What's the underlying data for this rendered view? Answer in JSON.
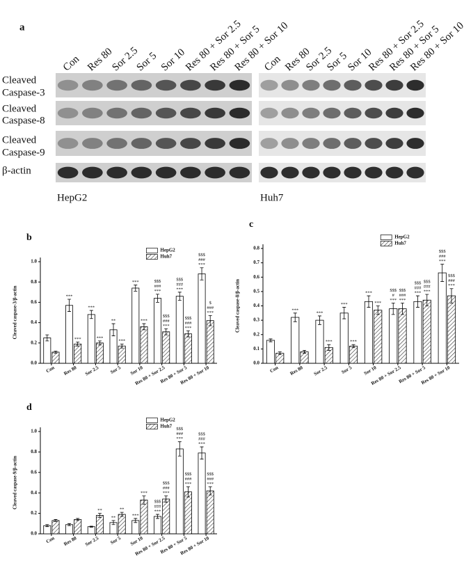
{
  "blot": {
    "label": "a",
    "panels": [
      {
        "cell_line": "HepG2",
        "lanes": [
          "Con",
          "Res 80",
          "Sor 2.5",
          "Sor 5",
          "Sor 10",
          "Res 80 + Sor 2.5",
          "Res 80 + Sor 5",
          "Res 80 + Sor 10"
        ]
      },
      {
        "cell_line": "Huh7",
        "lanes": [
          "Con",
          "Res 80",
          "Sor 2.5",
          "Sor 5",
          "Sor 10",
          "Res 80 + Sor 2.5",
          "Res 80 + Sor 5",
          "Res 80 + Sor 10"
        ]
      }
    ],
    "rows": [
      [
        "Cleaved",
        "Caspase-3"
      ],
      [
        "Cleaved",
        "Caspase-8"
      ],
      [
        "Cleaved",
        "Caspase-9"
      ],
      [
        "β-actin"
      ]
    ]
  },
  "chart_data": [
    {
      "type": "bar",
      "title": "b",
      "ylabel": "Cleaved caspase-3/β-actin",
      "categories": [
        "Con",
        "Res 80",
        "Sor 2.5",
        "Sor 5",
        "Sor 10",
        "Res 80 + Sor 2.5",
        "Res 80 + Sor 5",
        "Res 80 + Sor 10"
      ],
      "ylim": [
        0,
        1.0
      ],
      "yticks": [
        {
          "value": 0,
          "label": "0.0"
        },
        0.2,
        0.4,
        0.6,
        0.8,
        {
          "value": 1,
          "label": "1.0"
        }
      ],
      "legend": "top-right",
      "series": [
        {
          "name": "HepG2",
          "color": "#ffffff",
          "values": [
            0.25,
            0.57,
            0.48,
            0.33,
            0.74,
            0.64,
            0.66,
            0.88
          ],
          "errors": [
            0.03,
            0.06,
            0.04,
            0.06,
            0.03,
            0.04,
            0.04,
            0.06
          ],
          "annotations": [
            [],
            [
              "***"
            ],
            [
              "***"
            ],
            [
              "**"
            ],
            [
              "***"
            ],
            [
              "$$$",
              "###",
              "***"
            ],
            [
              "$$$",
              "###",
              "***"
            ],
            [
              "$$$",
              "###",
              "***"
            ]
          ]
        },
        {
          "name": "Huh7",
          "color": "#ffffff",
          "pattern": "hatch",
          "values": [
            0.11,
            0.19,
            0.2,
            0.17,
            0.36,
            0.31,
            0.29,
            0.42
          ],
          "errors": [
            0.01,
            0.02,
            0.02,
            0.02,
            0.03,
            0.03,
            0.03,
            0.05
          ],
          "annotations": [
            [],
            [
              "***"
            ],
            [
              "***"
            ],
            [
              "***"
            ],
            [
              "***"
            ],
            [
              "$$$",
              "###",
              "***"
            ],
            [
              "$$$",
              "###",
              "***"
            ],
            [
              "$",
              "###",
              "***"
            ]
          ]
        }
      ]
    },
    {
      "type": "bar",
      "title": "c",
      "ylabel": "Cleaved caspase-8/β-actin",
      "categories": [
        "Con",
        "Res 80",
        "Sor 2.5",
        "Sor 5",
        "Sor 10",
        "Res 80 + Sor 2.5",
        "Res 80 + Sor 5",
        "Res 80 + Sor 10"
      ],
      "ylim": [
        0,
        0.8
      ],
      "yticks": [
        {
          "value": 0,
          "label": "0.0"
        },
        0.1,
        0.2,
        0.3,
        0.4,
        0.5,
        0.6,
        0.7,
        0.8
      ],
      "legend": "top-right",
      "series": [
        {
          "name": "HepG2",
          "color": "#ffffff",
          "values": [
            0.16,
            0.32,
            0.3,
            0.35,
            0.43,
            0.38,
            0.43,
            0.63
          ],
          "errors": [
            0.01,
            0.03,
            0.03,
            0.04,
            0.04,
            0.04,
            0.04,
            0.06
          ],
          "annotations": [
            [],
            [
              "***"
            ],
            [
              "***"
            ],
            [
              "***"
            ],
            [
              "***"
            ],
            [
              "$$$",
              "#",
              "***"
            ],
            [
              "$$$",
              "###",
              "***"
            ],
            [
              "$$$",
              "###",
              "***"
            ]
          ]
        },
        {
          "name": "Huh7",
          "color": "#ffffff",
          "pattern": "hatch",
          "values": [
            0.07,
            0.08,
            0.11,
            0.12,
            0.37,
            0.38,
            0.44,
            0.47
          ],
          "errors": [
            0.01,
            0.01,
            0.02,
            0.01,
            0.03,
            0.04,
            0.04,
            0.05
          ],
          "annotations": [
            [],
            [],
            [
              "***"
            ],
            [
              "***"
            ],
            [
              "***"
            ],
            [
              "$$$",
              "###",
              "***"
            ],
            [
              "$$$",
              "###",
              "***"
            ],
            [
              "$$$",
              "###",
              "***"
            ]
          ]
        }
      ]
    },
    {
      "type": "bar",
      "title": "d",
      "ylabel": "Cleaved caspase-9/β-actin",
      "categories": [
        "Con",
        "Res 80",
        "Sor 2.5",
        "Sor 5",
        "Sor 10",
        "Res 80 + Sor 2.5",
        "Res 80 + Sor 5",
        "Res 80 + Sor 10"
      ],
      "ylim": [
        0,
        1.0
      ],
      "yticks": [
        {
          "value": 0,
          "label": "0.0"
        },
        0.2,
        0.4,
        0.6,
        0.8,
        {
          "value": 1,
          "label": "1.0"
        }
      ],
      "legend": "top-right",
      "series": [
        {
          "name": "HepG2",
          "color": "#ffffff",
          "values": [
            0.08,
            0.09,
            0.07,
            0.11,
            0.13,
            0.17,
            0.83,
            0.79
          ],
          "errors": [
            0.01,
            0.01,
            0.005,
            0.02,
            0.02,
            0.02,
            0.07,
            0.06
          ],
          "annotations": [
            [],
            [],
            [],
            [
              "**"
            ],
            [
              "***"
            ],
            [
              "$$$",
              "###",
              "***"
            ],
            [
              "$$$",
              "###",
              "***"
            ],
            [
              "$$$",
              "###",
              "***"
            ]
          ]
        },
        {
          "name": "Huh7",
          "color": "#ffffff",
          "pattern": "hatch",
          "values": [
            0.13,
            0.14,
            0.18,
            0.19,
            0.33,
            0.34,
            0.41,
            0.42
          ],
          "errors": [
            0.01,
            0.01,
            0.02,
            0.02,
            0.04,
            0.03,
            0.05,
            0.04
          ],
          "annotations": [
            [],
            [],
            [
              "**"
            ],
            [
              "**"
            ],
            [
              "***"
            ],
            [
              "$$$",
              "###",
              "***"
            ],
            [
              "$$$",
              "###",
              "***"
            ],
            [
              "$$$",
              "###",
              "***"
            ]
          ]
        }
      ]
    }
  ]
}
